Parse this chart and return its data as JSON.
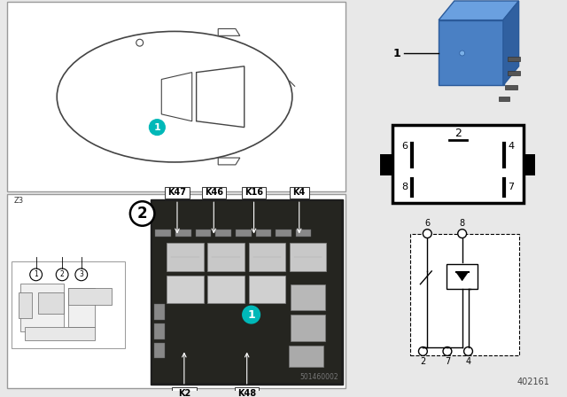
{
  "bg_color": "#e8e8e8",
  "white": "#ffffff",
  "black": "#000000",
  "relay_blue": "#4a7fc1",
  "teal": "#00b8b8",
  "doc_number": "402161",
  "photo_label": "501460002",
  "relay_labels_top": [
    "K47",
    "K46",
    "K16",
    "K4"
  ],
  "relay_labels_bottom": [
    "K2",
    "K48"
  ],
  "callout_1": "1",
  "callout_2": "2"
}
